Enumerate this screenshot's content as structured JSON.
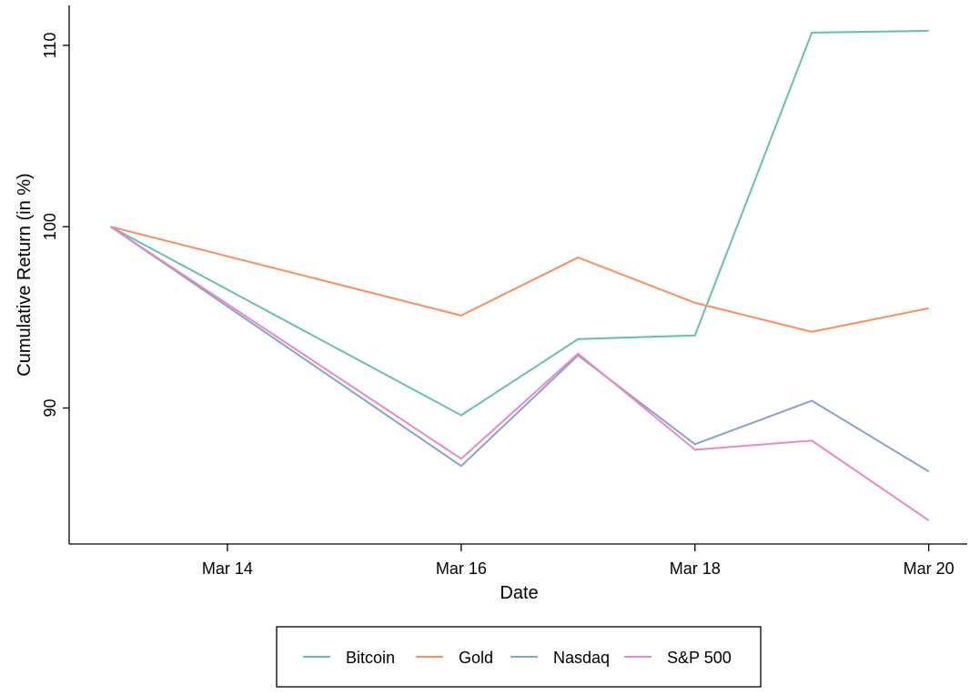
{
  "chart_data": {
    "type": "line",
    "title": "",
    "xlabel": "Date",
    "ylabel": "Cumulative Return (in %)",
    "x": [
      "Mar 13",
      "Mar 16",
      "Mar 17",
      "Mar 18",
      "Mar 19",
      "Mar 20"
    ],
    "x_ticks": [
      "Mar 14",
      "Mar 16",
      "Mar 18",
      "Mar 20"
    ],
    "y_ticks": [
      90,
      100,
      110
    ],
    "ylim": [
      82.5,
      112.2
    ],
    "grid": false,
    "legend_position": "bottom",
    "series": [
      {
        "name": "Bitcoin",
        "color": "#66c2a5",
        "values": [
          100.0,
          89.6,
          93.8,
          94.0,
          110.7,
          110.8
        ]
      },
      {
        "name": "Gold",
        "color": "#fc8d62",
        "values": [
          100.0,
          95.1,
          98.3,
          95.8,
          94.2,
          95.5
        ]
      },
      {
        "name": "Nasdaq",
        "color": "#8da0cb",
        "values": [
          100.0,
          86.8,
          92.9,
          88.0,
          90.4,
          86.5
        ]
      },
      {
        "name": "S&P 500",
        "color": "#e78ac3",
        "values": [
          100.0,
          87.2,
          93.0,
          87.7,
          88.2,
          83.8
        ]
      }
    ]
  }
}
